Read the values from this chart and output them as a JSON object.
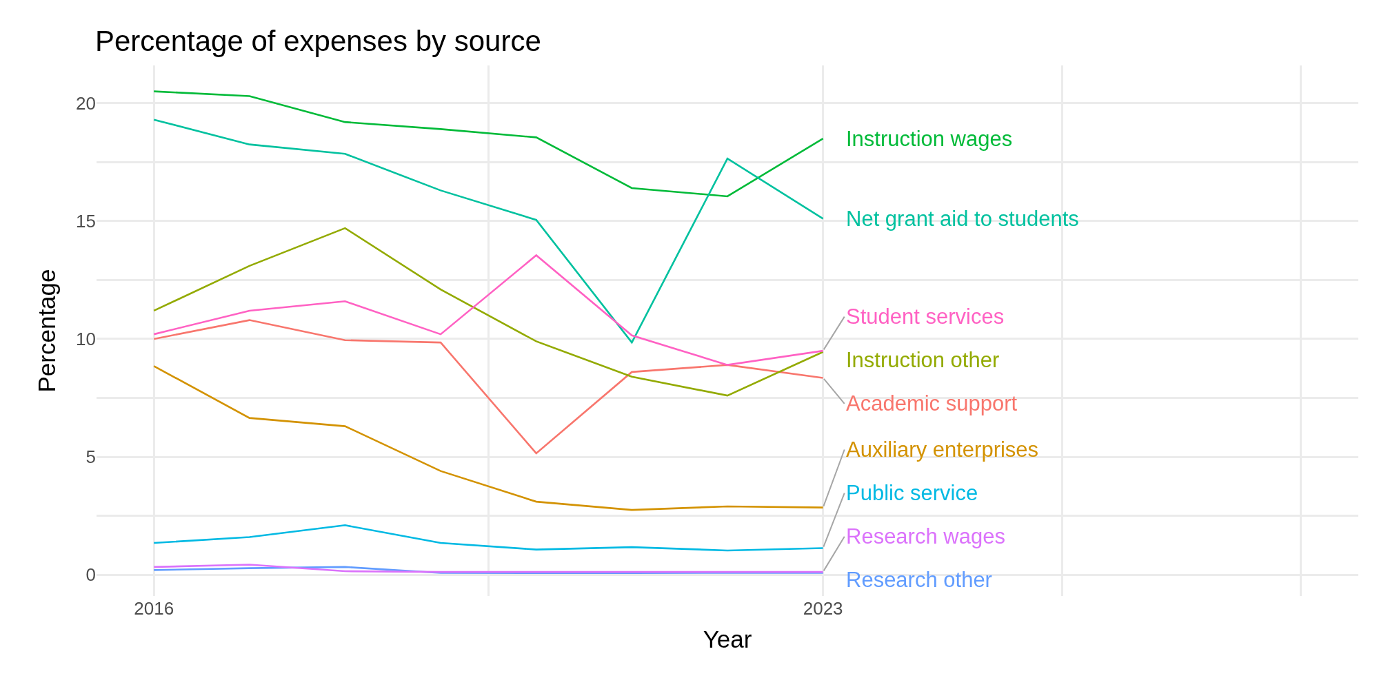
{
  "chart_data": {
    "type": "line",
    "title": "Percentage of expenses by source",
    "xlabel": "Year",
    "ylabel": "Percentage",
    "x": [
      2016,
      2017,
      2018,
      2019,
      2020,
      2021,
      2022,
      2023
    ],
    "xlim": [
      2015.4,
      2028.6
    ],
    "xticks": [
      2016,
      {
        "value": 2019.5,
        "label": null
      },
      2023,
      {
        "value": 2025.5,
        "label": null
      },
      {
        "value": 2028,
        "label": null
      }
    ],
    "ylim": [
      -0.9,
      21.6
    ],
    "yticks": [
      0,
      {
        "value": 2.5,
        "label": null
      },
      5,
      {
        "value": 7.5,
        "label": null
      },
      10,
      {
        "value": 12.5,
        "label": null
      },
      15,
      {
        "value": 17.5,
        "label": null
      },
      20
    ],
    "grid": true,
    "legend": false,
    "marker": "none",
    "line_style": "solid",
    "series": [
      {
        "name": "Academic support",
        "color": "#f8766d",
        "values": [
          10.0,
          10.8,
          9.95,
          9.85,
          5.15,
          8.6,
          8.9,
          8.35
        ]
      },
      {
        "name": "Auxiliary enterprises",
        "color": "#d39200",
        "values": [
          8.85,
          6.65,
          6.3,
          4.4,
          3.1,
          2.75,
          2.9,
          2.85
        ]
      },
      {
        "name": "Instruction other",
        "color": "#93aa00",
        "values": [
          11.2,
          13.1,
          14.7,
          12.1,
          9.9,
          8.4,
          7.6,
          9.45
        ]
      },
      {
        "name": "Instruction wages",
        "color": "#00ba38",
        "values": [
          20.5,
          20.3,
          19.2,
          18.9,
          18.55,
          16.4,
          16.05,
          18.5
        ]
      },
      {
        "name": "Net grant aid to students",
        "color": "#00c19f",
        "values": [
          19.3,
          18.25,
          17.85,
          16.3,
          15.05,
          9.85,
          17.65,
          15.1
        ]
      },
      {
        "name": "Public service",
        "color": "#00b9e3",
        "values": [
          1.35,
          1.6,
          2.1,
          1.35,
          1.07,
          1.17,
          1.03,
          1.13
        ]
      },
      {
        "name": "Research other",
        "color": "#619cff",
        "values": [
          0.2,
          0.28,
          0.33,
          0.08,
          0.07,
          0.07,
          0.08,
          0.08
        ]
      },
      {
        "name": "Research wages",
        "color": "#db72fb",
        "values": [
          0.33,
          0.43,
          0.15,
          0.12,
          0.12,
          0.12,
          0.12,
          0.12
        ]
      },
      {
        "name": "Student services",
        "color": "#ff61c3",
        "values": [
          10.2,
          11.2,
          11.6,
          10.2,
          13.55,
          10.15,
          8.9,
          9.5
        ]
      }
    ]
  }
}
